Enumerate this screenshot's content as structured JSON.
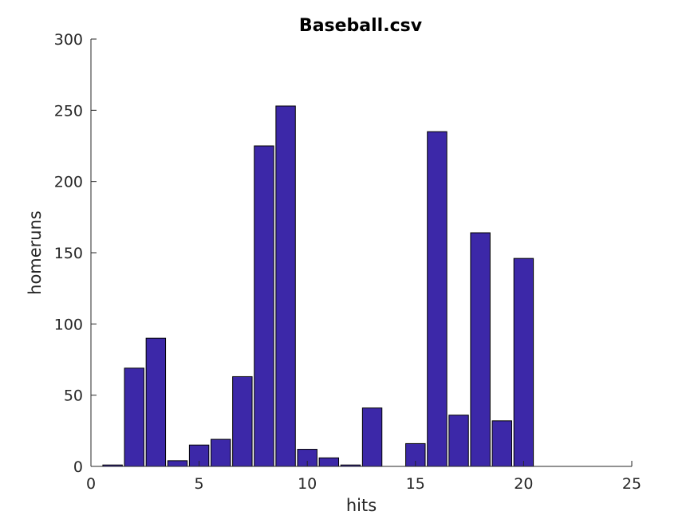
{
  "chart_data": {
    "type": "bar",
    "title": "Baseball.csv",
    "xlabel": "hits",
    "ylabel": "homeruns",
    "xlim": [
      0,
      25
    ],
    "ylim": [
      0,
      300
    ],
    "xticks": [
      0,
      5,
      10,
      15,
      20,
      25
    ],
    "yticks": [
      0,
      50,
      100,
      150,
      200,
      250,
      300
    ],
    "grid": false,
    "bar_color": "#3c28a8",
    "bar_width": 0.9,
    "x": [
      1,
      2,
      3,
      4,
      5,
      6,
      7,
      8,
      9,
      10,
      11,
      12,
      13,
      14,
      15,
      16,
      17,
      18,
      19,
      20
    ],
    "values": [
      1,
      69,
      90,
      4,
      15,
      19,
      63,
      225,
      253,
      12,
      6,
      1,
      41,
      0,
      16,
      235,
      36,
      164,
      32,
      146
    ]
  }
}
